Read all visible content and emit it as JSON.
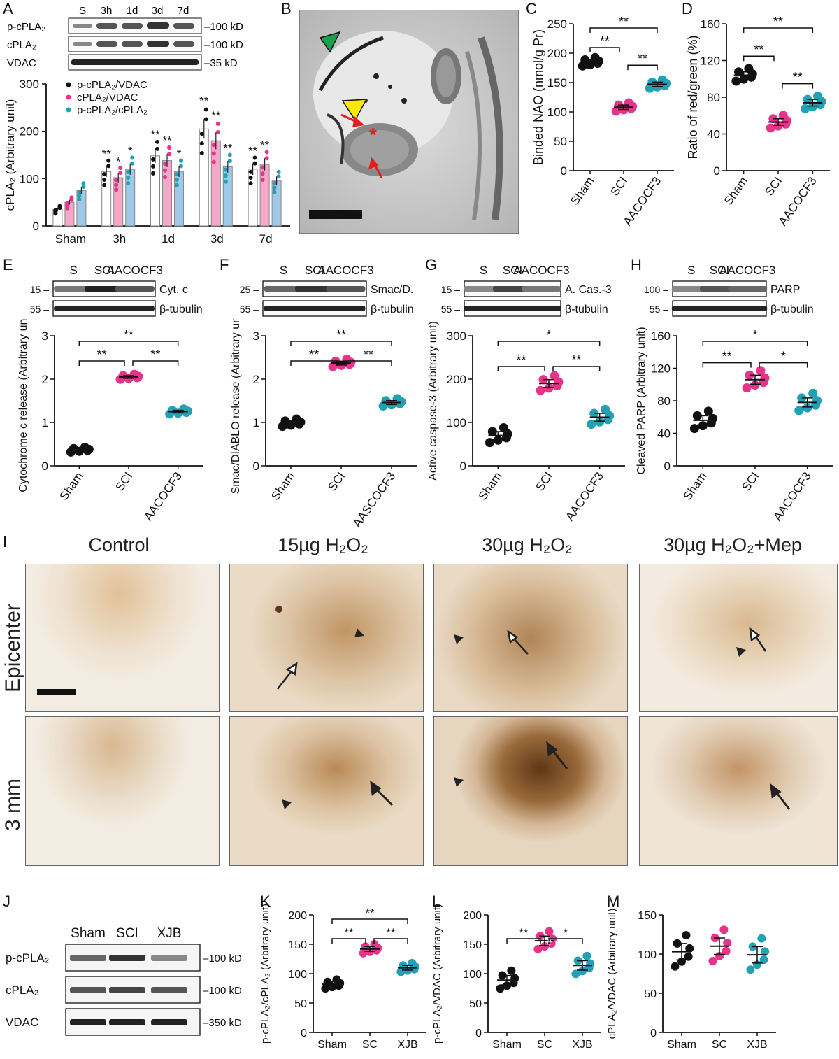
{
  "figure": {
    "panel_letters": [
      "A",
      "B",
      "C",
      "D",
      "E",
      "F",
      "G",
      "H",
      "I",
      "J",
      "K",
      "L",
      "M"
    ]
  },
  "colors": {
    "sham": "#111111",
    "sci": "#e8338a",
    "treat": "#22a0b4",
    "bar_sham": "#ffffff",
    "bar_sci": "#f7a8c8",
    "bar_treat": "#9ec9e8"
  },
  "panelA": {
    "blot_lanes": [
      "S",
      "3h",
      "1d",
      "3d",
      "7d"
    ],
    "blot_rows": [
      "p-cPLA₂",
      "cPLA₂",
      "VDAC"
    ],
    "blot_sizes": [
      "–100 kD",
      "–100 kD",
      "–35 kD"
    ]
  },
  "panelB": {
    "description_icons": [
      "green-arrowhead-icon",
      "yellow-arrowhead-icon",
      "red-arrow-icon",
      "red-asterisk-icon"
    ],
    "asterisk": "*"
  },
  "panelE": {
    "lanes": [
      "S",
      "SCI",
      "AACOCF3"
    ],
    "rows": [
      "Cyt. c",
      "β-tubulin"
    ],
    "sizes": [
      "15 –",
      "55 –"
    ]
  },
  "panelF": {
    "lanes": [
      "S",
      "SCI",
      "AACOCF3"
    ],
    "rows": [
      "Smac/D.",
      "β-tubulin"
    ],
    "sizes": [
      "25 –",
      "55 –"
    ]
  },
  "panelG": {
    "lanes": [
      "S",
      "SCI",
      "AACOCF3"
    ],
    "rows": [
      "A. Cas.-3",
      "β-tubulin"
    ],
    "sizes": [
      "15 –",
      "55 –"
    ]
  },
  "panelH": {
    "lanes": [
      "S",
      "SCI",
      "AACOCF3"
    ],
    "rows": [
      "PARP",
      "β-tubulin"
    ],
    "sizes": [
      "100 –",
      "55 –"
    ]
  },
  "panelI": {
    "columns": [
      "Control",
      "15µg H₂O₂",
      "30µg H₂O₂",
      "30µg H₂O₂+Mep"
    ],
    "rows": [
      "Epicenter",
      "3 mm"
    ]
  },
  "panelJ": {
    "lanes": [
      "Sham",
      "SCI",
      "XJB"
    ],
    "rows": [
      "p-cPLA₂",
      "cPLA₂",
      "VDAC"
    ],
    "sizes": [
      "–100 kD",
      "–100 kD",
      "–350 kD"
    ]
  },
  "chart_data": [
    {
      "id": "A",
      "type": "bar",
      "categories": [
        "Sham",
        "3h",
        "1d",
        "3d",
        "7d"
      ],
      "ylabel": "cPLA₂ (Arbitrary unit)",
      "ylim": [
        0,
        300
      ],
      "yticks": [
        0,
        100,
        200,
        300
      ],
      "series": [
        {
          "name": "p-cPLA₂/VDAC",
          "values": [
            35,
            115,
            148,
            205,
            120
          ]
        },
        {
          "name": "cPLA₂/VDAC",
          "values": [
            50,
            102,
            138,
            180,
            130
          ]
        },
        {
          "name": "p-cPLA₂/cPLA₂",
          "values": [
            75,
            120,
            115,
            125,
            95
          ]
        }
      ],
      "sig": [
        [
          "",
          "",
          ""
        ],
        [
          "**",
          "*",
          "*"
        ],
        [
          "**",
          "**",
          "*"
        ],
        [
          "**",
          "**",
          "**"
        ],
        [
          "**",
          "**",
          ""
        ]
      ],
      "legend": "top-left"
    },
    {
      "id": "C",
      "type": "scatter",
      "categories": [
        "Sham",
        "SCI",
        "AACOCF3"
      ],
      "ylabel": "Binded NAO (nmol/g Pr)",
      "ylim": [
        0,
        250
      ],
      "yticks": [
        0,
        50,
        100,
        150,
        200,
        250
      ],
      "means": [
        185,
        108,
        147
      ],
      "brackets": [
        [
          0,
          1,
          "**"
        ],
        [
          1,
          2,
          "**"
        ],
        [
          0,
          2,
          "**"
        ]
      ]
    },
    {
      "id": "D",
      "type": "scatter",
      "categories": [
        "Sham",
        "SCI",
        "AACOCF3"
      ],
      "ylabel": "Ratio of red/green (%)",
      "ylim": [
        0,
        160
      ],
      "yticks": [
        0,
        40,
        80,
        120,
        160
      ],
      "means": [
        104,
        53,
        74
      ],
      "brackets": [
        [
          0,
          1,
          "**"
        ],
        [
          1,
          2,
          "**"
        ],
        [
          0,
          2,
          "**"
        ]
      ]
    },
    {
      "id": "E",
      "type": "scatter",
      "categories": [
        "Sham",
        "SCI",
        "AACOCF3"
      ],
      "ylabel": "Cytochrome c release (Arbitrary unit)",
      "ylim": [
        0,
        3
      ],
      "yticks": [
        0,
        1,
        2,
        3
      ],
      "means": [
        0.37,
        2.05,
        1.25
      ],
      "brackets": [
        [
          0,
          1,
          "**"
        ],
        [
          1,
          2,
          "**"
        ],
        [
          0,
          2,
          "**"
        ]
      ]
    },
    {
      "id": "F",
      "type": "scatter",
      "categories": [
        "Sham",
        "SCI",
        "AASCOCF3"
      ],
      "ylabel": "Smac/DIABLO release (Arbitrary unit)",
      "ylim": [
        0,
        3
      ],
      "yticks": [
        0,
        1,
        2,
        3
      ],
      "means": [
        0.99,
        2.37,
        1.46
      ],
      "brackets": [
        [
          0,
          1,
          "**"
        ],
        [
          1,
          2,
          "**"
        ],
        [
          0,
          2,
          "**"
        ]
      ]
    },
    {
      "id": "G",
      "type": "scatter",
      "categories": [
        "Sham",
        "SCI",
        "AACOCF3"
      ],
      "ylabel": "Active caspase-3 (Arbitrary unit)",
      "ylim": [
        0,
        300
      ],
      "yticks": [
        0,
        100,
        200,
        300
      ],
      "means": [
        70,
        190,
        112
      ],
      "brackets": [
        [
          0,
          1,
          "**"
        ],
        [
          1,
          2,
          "**"
        ],
        [
          0,
          2,
          "*"
        ]
      ]
    },
    {
      "id": "H",
      "type": "scatter",
      "categories": [
        "Sham",
        "SCI",
        "AACOCF3"
      ],
      "ylabel": "Cleaved PARP (Arbitrary unit)",
      "ylim": [
        0,
        160
      ],
      "yticks": [
        0,
        40,
        80,
        120,
        160
      ],
      "means": [
        56,
        106,
        78
      ],
      "brackets": [
        [
          0,
          1,
          "**"
        ],
        [
          1,
          2,
          "*"
        ],
        [
          0,
          2,
          "*"
        ]
      ]
    },
    {
      "id": "K",
      "type": "scatter",
      "categories": [
        "Sham",
        "SC",
        "XJB"
      ],
      "ylabel": "p-cPLA₂/cPLA₂ (Arbitrary unit)",
      "ylim": [
        0,
        200
      ],
      "yticks": [
        0,
        50,
        100,
        150,
        200
      ],
      "means": [
        82,
        142,
        110
      ],
      "brackets": [
        [
          0,
          1,
          "**"
        ],
        [
          1,
          2,
          "**"
        ],
        [
          0,
          2,
          "**"
        ]
      ]
    },
    {
      "id": "L",
      "type": "scatter",
      "categories": [
        "Sham",
        "SC",
        "XJB"
      ],
      "ylabel": "p-cPLA₂/VDAC (Arbitrary unit)",
      "ylim": [
        0,
        200
      ],
      "yticks": [
        0,
        50,
        100,
        150,
        200
      ],
      "means": [
        89,
        156,
        114
      ],
      "brackets": [
        [
          0,
          1,
          "**"
        ],
        [
          1,
          2,
          "*"
        ]
      ],
      "note": "#"
    },
    {
      "id": "M",
      "type": "scatter",
      "categories": [
        "Sham",
        "SC",
        "XJB"
      ],
      "ylabel": "cPLA₂/VDAC (Arbitrary unit)",
      "ylim": [
        0,
        150
      ],
      "yticks": [
        0,
        50,
        100,
        150
      ],
      "means": [
        103,
        110,
        99
      ],
      "brackets": []
    }
  ]
}
